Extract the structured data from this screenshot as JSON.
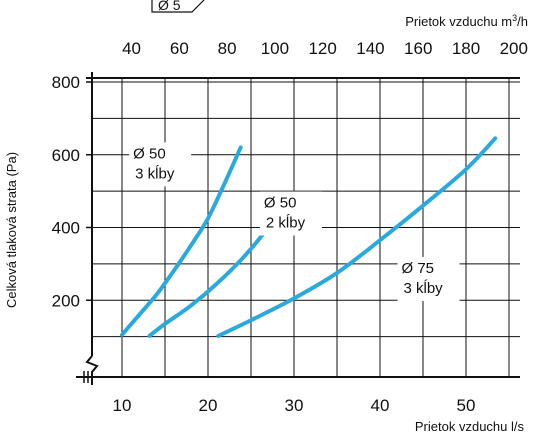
{
  "chart_data": {
    "type": "line",
    "title": "",
    "xlabel": "Prietok vzduchu l/s",
    "x2label_prefix": "Prietok vzduchu m",
    "x2label_sup": "3",
    "x2label_suffix": "/h",
    "ylabel": "Celková tlaková strata (Pa)",
    "xlim": [
      5.5,
      55
    ],
    "ylim": [
      0,
      800
    ],
    "x2lim": [
      19.8,
      198
    ],
    "grid": true,
    "xticks": [
      "10",
      "20",
      "30",
      "40",
      "50"
    ],
    "xtick_values": [
      10,
      20,
      30,
      40,
      50
    ],
    "yticks": [
      "200",
      "400",
      "600",
      "800"
    ],
    "ytick_values": [
      200,
      400,
      600,
      800
    ],
    "x2ticks": [
      "40",
      "60",
      "80",
      "100",
      "120",
      "140",
      "160",
      "180",
      "200"
    ],
    "x2tick_values": [
      40,
      60,
      80,
      100,
      120,
      140,
      160,
      180,
      200
    ],
    "series": [
      {
        "line1": "Ø 50",
        "line2": "3 kĺby",
        "color": "#2aa9df",
        "label_x": 11.3,
        "label_y": 590,
        "x": [
          10,
          12,
          14,
          16,
          18,
          20,
          22,
          23.8
        ],
        "y": [
          105,
          160,
          215,
          280,
          350,
          425,
          525,
          620
        ]
      },
      {
        "line1": "Ø 50",
        "line2": "2 kĺby",
        "color": "#2aa9df",
        "label_x": 26.5,
        "label_y": 455,
        "x": [
          13.2,
          15,
          18,
          21,
          24,
          27,
          29.2
        ],
        "y": [
          102,
          135,
          185,
          245,
          315,
          400,
          480
        ]
      },
      {
        "line1": "Ø 75",
        "line2": "3 kĺby",
        "color": "#2aa9df",
        "label_x": 42.5,
        "label_y": 275,
        "x": [
          21.2,
          25,
          30,
          35,
          40,
          45,
          50,
          53.4
        ],
        "y": [
          102,
          145,
          205,
          275,
          365,
          460,
          560,
          645
        ]
      }
    ]
  }
}
